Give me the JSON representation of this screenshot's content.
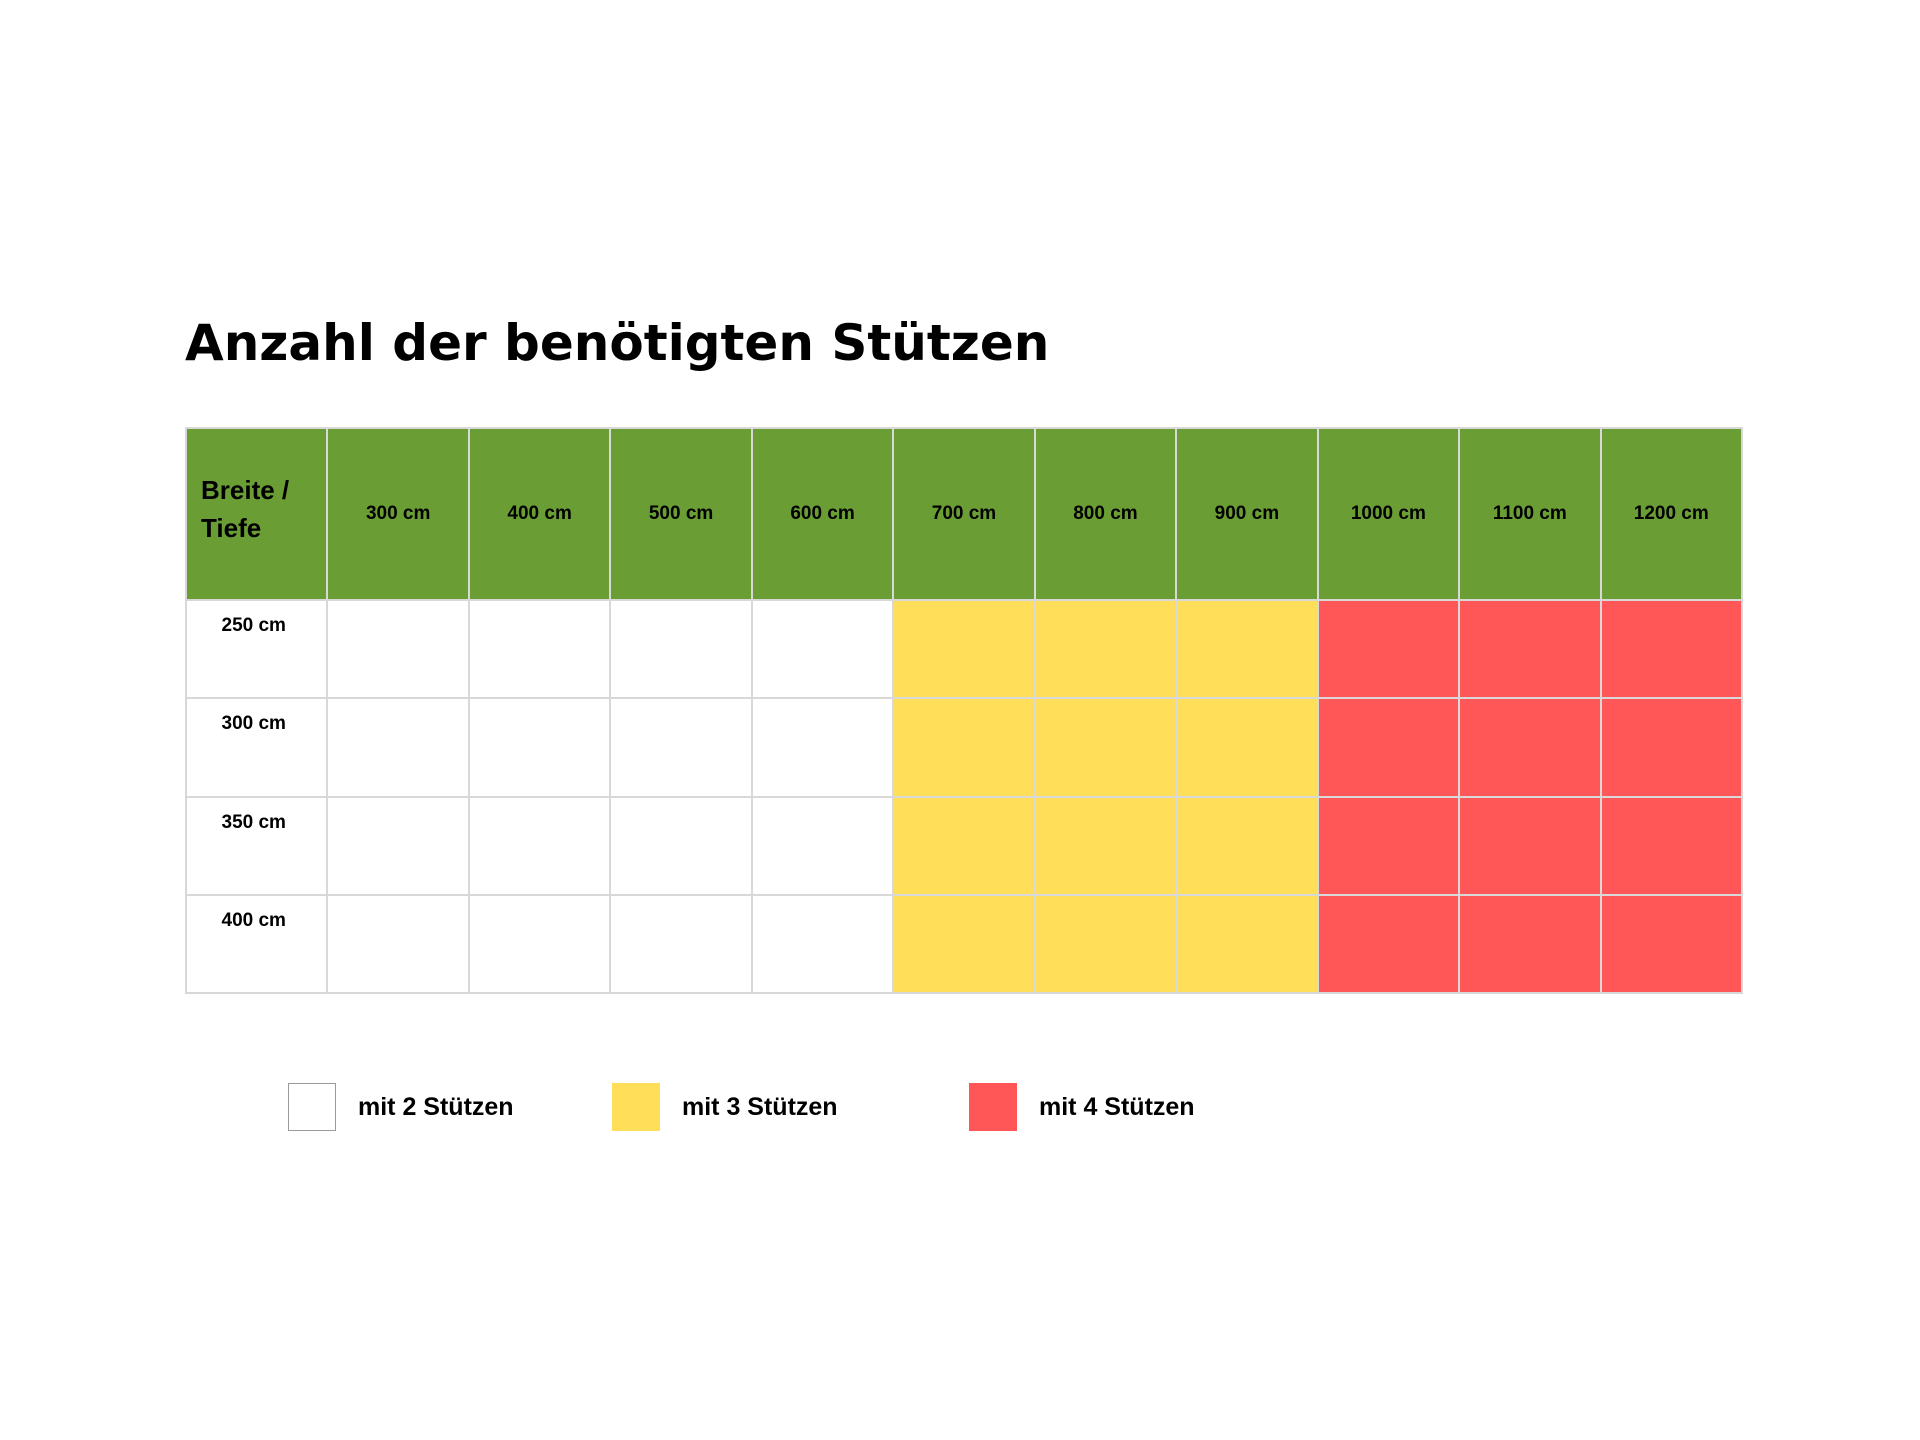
{
  "chart_data": {
    "type": "table",
    "title": "Anzahl der benötigten Stützen",
    "corner_label": "Breite /\nTiefe",
    "columns": [
      "300 cm",
      "400 cm",
      "500 cm",
      "600 cm",
      "700 cm",
      "800 cm",
      "900 cm",
      "1000 cm",
      "1100 cm",
      "1200 cm"
    ],
    "rows": [
      {
        "label": "250 cm",
        "values": [
          2,
          2,
          2,
          2,
          3,
          3,
          3,
          4,
          4,
          4
        ]
      },
      {
        "label": "300 cm",
        "values": [
          2,
          2,
          2,
          2,
          3,
          3,
          3,
          4,
          4,
          4
        ]
      },
      {
        "label": "350 cm",
        "values": [
          2,
          2,
          2,
          2,
          3,
          3,
          3,
          4,
          4,
          4
        ]
      },
      {
        "label": "400 cm",
        "values": [
          2,
          2,
          2,
          2,
          3,
          3,
          3,
          4,
          4,
          4
        ]
      }
    ],
    "legend": [
      {
        "value": 2,
        "label": "mit 2 Stützen",
        "color": "#ffffff"
      },
      {
        "value": 3,
        "label": "mit 3 Stützen",
        "color": "#ffde59"
      },
      {
        "value": 4,
        "label": "mit 4 Stützen",
        "color": "#ff5757"
      }
    ],
    "header_color": "#6a9e35",
    "grid_color": "#d8d8d8"
  }
}
